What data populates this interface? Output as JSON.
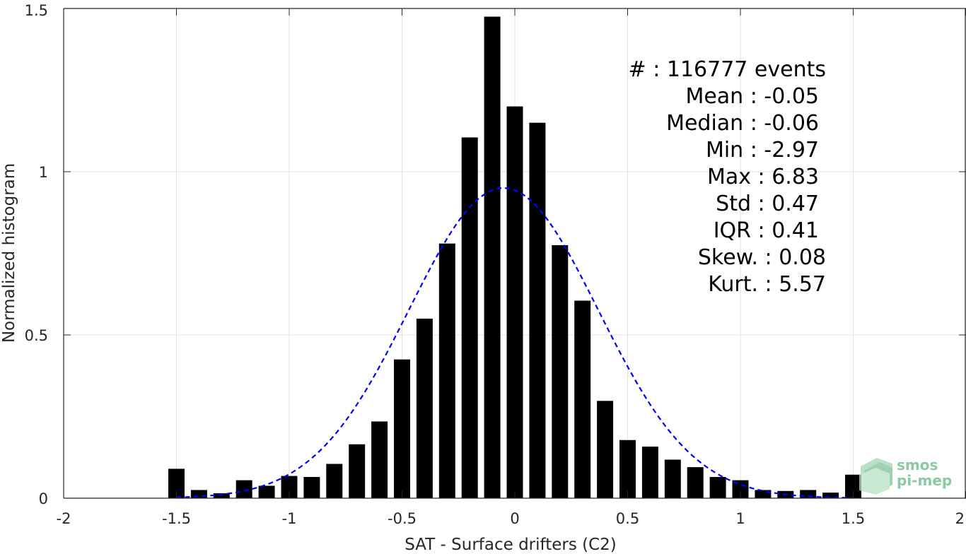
{
  "chart_data": {
    "type": "bar",
    "xlabel": "SAT - Surface drifters (C2)",
    "ylabel": "Normalized histogram",
    "xlim": [
      -2,
      2
    ],
    "ylim": [
      0,
      1.5
    ],
    "x_ticks": [
      -2,
      -1.5,
      -1,
      -0.5,
      0,
      0.5,
      1,
      1.5,
      2
    ],
    "x_tick_labels": [
      "-2",
      "-1.5",
      "-1",
      "-0.5",
      "0",
      "0.5",
      "1",
      "1.5",
      "2"
    ],
    "y_ticks": [
      0,
      0.5,
      1,
      1.5
    ],
    "y_tick_labels": [
      "0",
      "0.5",
      "1",
      "1.5"
    ],
    "grid": true,
    "bar_color": "#000000",
    "bin_width": 0.1,
    "bars": [
      {
        "x": -1.5,
        "y": 0.09
      },
      {
        "x": -1.4,
        "y": 0.025
      },
      {
        "x": -1.3,
        "y": 0.015
      },
      {
        "x": -1.2,
        "y": 0.055
      },
      {
        "x": -1.1,
        "y": 0.038
      },
      {
        "x": -1.0,
        "y": 0.068
      },
      {
        "x": -0.9,
        "y": 0.065
      },
      {
        "x": -0.8,
        "y": 0.105
      },
      {
        "x": -0.7,
        "y": 0.165
      },
      {
        "x": -0.6,
        "y": 0.235
      },
      {
        "x": -0.5,
        "y": 0.425
      },
      {
        "x": -0.4,
        "y": 0.55
      },
      {
        "x": -0.3,
        "y": 0.78
      },
      {
        "x": -0.2,
        "y": 1.105
      },
      {
        "x": -0.1,
        "y": 1.475
      },
      {
        "x": 0.0,
        "y": 1.2
      },
      {
        "x": 0.1,
        "y": 1.15
      },
      {
        "x": 0.2,
        "y": 0.775
      },
      {
        "x": 0.3,
        "y": 0.605
      },
      {
        "x": 0.4,
        "y": 0.298
      },
      {
        "x": 0.5,
        "y": 0.178
      },
      {
        "x": 0.6,
        "y": 0.158
      },
      {
        "x": 0.7,
        "y": 0.118
      },
      {
        "x": 0.8,
        "y": 0.095
      },
      {
        "x": 0.9,
        "y": 0.065
      },
      {
        "x": 1.0,
        "y": 0.055
      },
      {
        "x": 1.1,
        "y": 0.025
      },
      {
        "x": 1.2,
        "y": 0.022
      },
      {
        "x": 1.3,
        "y": 0.025
      },
      {
        "x": 1.4,
        "y": 0.017
      },
      {
        "x": 1.5,
        "y": 0.072
      }
    ],
    "fit_curve": {
      "type": "gaussian",
      "mean": -0.05,
      "std": 0.42,
      "peak": 0.95,
      "x_range": [
        -1.5,
        1.5
      ],
      "color": "#0000ff",
      "style": "dashed"
    },
    "stats": [
      {
        "label": "#  : 116777 events"
      },
      {
        "label": "Mean : -0.05"
      },
      {
        "label": "Median : -0.06"
      },
      {
        "label": "Min : -2.97"
      },
      {
        "label": "Max : 6.83"
      },
      {
        "label": "Std : 0.47"
      },
      {
        "label": "IQR : 0.41"
      },
      {
        "label": "Skew. : 0.08"
      },
      {
        "label": "Kurt. : 5.57"
      }
    ]
  },
  "logo": {
    "line1": "smos",
    "line2": "pi-mep",
    "color": "#8cc9a3"
  }
}
